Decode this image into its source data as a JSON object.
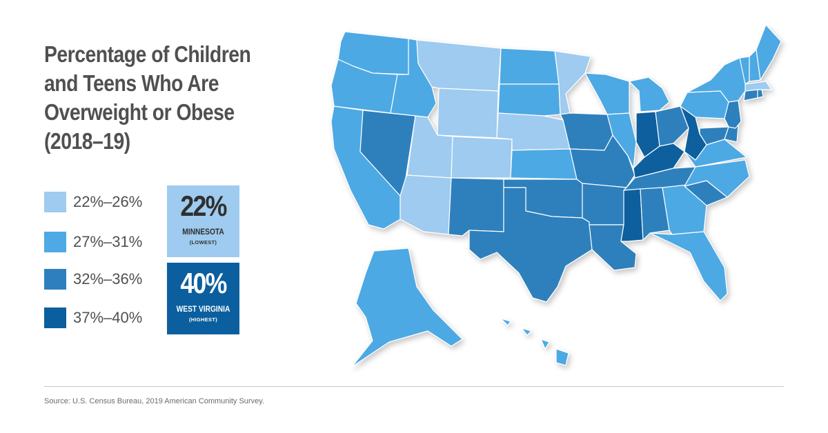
{
  "title": {
    "line1": "Percentage of Children",
    "line2": "and Teens Who Are",
    "line3": "Overweight or Obese",
    "line4": "(2018–19)"
  },
  "legend": [
    {
      "label": "22%–26%",
      "color": "#9ecbef"
    },
    {
      "label": "27%–31%",
      "color": "#4ea9e4"
    },
    {
      "label": "32%–36%",
      "color": "#2d80bd"
    },
    {
      "label": "37%–40%",
      "color": "#0b5f9e"
    }
  ],
  "callouts": {
    "lowest": {
      "percent": "22%",
      "state": "MINNESOTA",
      "rank": "(LOWEST)"
    },
    "highest": {
      "percent": "40%",
      "state": "WEST VIRGINIA",
      "rank": "(HIGHEST)"
    }
  },
  "map": {
    "bins": {
      "low": "#9ecbef",
      "midlow": "#4ea9e4",
      "midhigh": "#2d80bd",
      "high": "#0b5f9e"
    },
    "border_color": "#ffffff",
    "states": [
      {
        "id": "WA",
        "bin": "midlow"
      },
      {
        "id": "OR",
        "bin": "midlow"
      },
      {
        "id": "CA",
        "bin": "midlow"
      },
      {
        "id": "ID",
        "bin": "midlow"
      },
      {
        "id": "NV",
        "bin": "midhigh"
      },
      {
        "id": "MT",
        "bin": "low"
      },
      {
        "id": "WY",
        "bin": "low"
      },
      {
        "id": "UT",
        "bin": "low"
      },
      {
        "id": "AZ",
        "bin": "low"
      },
      {
        "id": "CO",
        "bin": "low"
      },
      {
        "id": "NM",
        "bin": "midhigh"
      },
      {
        "id": "ND",
        "bin": "midlow"
      },
      {
        "id": "SD",
        "bin": "midlow"
      },
      {
        "id": "NE",
        "bin": "low"
      },
      {
        "id": "KS",
        "bin": "midlow"
      },
      {
        "id": "OK",
        "bin": "midhigh"
      },
      {
        "id": "TX",
        "bin": "midhigh"
      },
      {
        "id": "MN",
        "bin": "low"
      },
      {
        "id": "IA",
        "bin": "midhigh"
      },
      {
        "id": "MO",
        "bin": "midhigh"
      },
      {
        "id": "AR",
        "bin": "midhigh"
      },
      {
        "id": "LA",
        "bin": "midhigh"
      },
      {
        "id": "WI",
        "bin": "midlow"
      },
      {
        "id": "IL",
        "bin": "midlow"
      },
      {
        "id": "MI",
        "bin": "midlow"
      },
      {
        "id": "IN",
        "bin": "high"
      },
      {
        "id": "OH",
        "bin": "midhigh"
      },
      {
        "id": "KY",
        "bin": "high"
      },
      {
        "id": "TN",
        "bin": "midhigh"
      },
      {
        "id": "MS",
        "bin": "high"
      },
      {
        "id": "AL",
        "bin": "midhigh"
      },
      {
        "id": "GA",
        "bin": "midlow"
      },
      {
        "id": "FL",
        "bin": "midlow"
      },
      {
        "id": "SC",
        "bin": "midhigh"
      },
      {
        "id": "NC",
        "bin": "midlow"
      },
      {
        "id": "VA",
        "bin": "midlow"
      },
      {
        "id": "WV",
        "bin": "high"
      },
      {
        "id": "PA",
        "bin": "midlow"
      },
      {
        "id": "NY",
        "bin": "midlow"
      },
      {
        "id": "MD",
        "bin": "midhigh"
      },
      {
        "id": "DE",
        "bin": "midhigh"
      },
      {
        "id": "NJ",
        "bin": "midhigh"
      },
      {
        "id": "CT",
        "bin": "midhigh"
      },
      {
        "id": "RI",
        "bin": "midhigh"
      },
      {
        "id": "MA",
        "bin": "low"
      },
      {
        "id": "VT",
        "bin": "midlow"
      },
      {
        "id": "NH",
        "bin": "midlow"
      },
      {
        "id": "ME",
        "bin": "midlow"
      },
      {
        "id": "AK",
        "bin": "midlow"
      },
      {
        "id": "HI",
        "bin": "midlow"
      }
    ]
  },
  "source": "Source: U.S. Census Bureau, 2019 American Community Survey."
}
